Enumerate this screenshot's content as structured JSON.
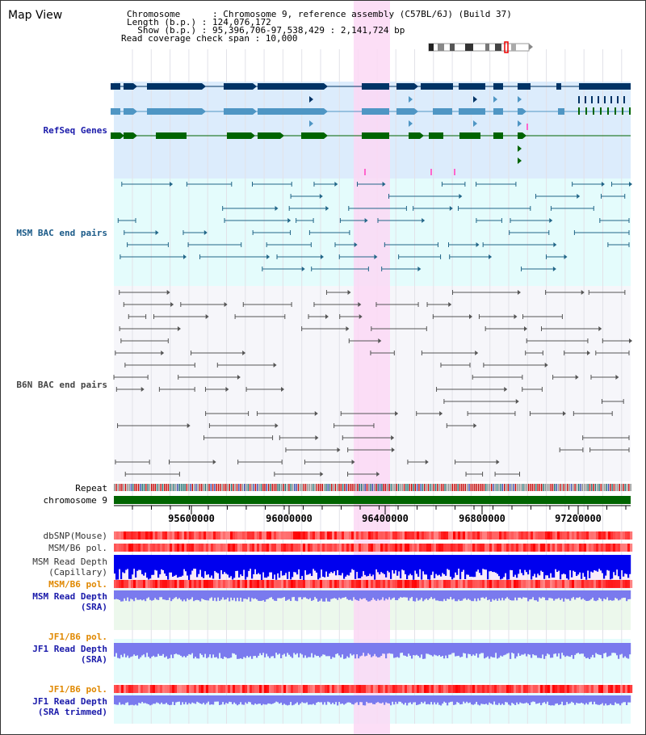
{
  "title": "Map View",
  "header": {
    "chromosome": "Chromosome      : Chromosome 9, reference assembly (C57BL/6J) (Build 37)",
    "length": "Length (b.p.) : 124,076,172",
    "show": "  Show (b.p.) : 95,396,706-97,538,429 : 2,141,724 bp",
    "coverage": "Read coverage check span : 10,000"
  },
  "tracks": {
    "refseq": "RefSeq Genes",
    "msm_bac": "MSM BAC end pairs",
    "b6n_bac": "B6N BAC end pairs",
    "repeat": "Repeat",
    "chromosome": "chromosome 9",
    "dbsnp": "dbSNP(Mouse)",
    "msm_b6_pol_1": "MSM/B6 pol.",
    "msm_depth_cap_1": "MSM Read Depth",
    "msm_depth_cap_2": "(Capillary)",
    "msm_b6_pol_2": "MSM/B6 pol.",
    "msm_depth_sra_1": "MSM Read Depth",
    "msm_depth_sra_2": "(SRA)",
    "jf1_b6_pol_1": "JF1/B6 pol.",
    "jf1_depth_sra_1": "JF1 Read Depth",
    "jf1_depth_sra_2": "(SRA)",
    "jf1_b6_pol_2": "JF1/B6 pol.",
    "jf1_depth_trim_1": "JF1 Read Depth",
    "jf1_depth_trim_2": "(SRA trimmed)"
  },
  "scale_ticks": [
    "95600000",
    "96000000",
    "96400000",
    "96800000",
    "97200000"
  ],
  "colors": {
    "refseq_bg": "#dcecfc",
    "msm_bg": "#e4fcfc",
    "highlight": "#fcd8f4",
    "gene_navy": "#003366",
    "gene_steel": "#4f96c4",
    "gene_green": "#006400",
    "bac_line": "#226688",
    "b6n_line": "#555555",
    "chromosome_bar": "#006400",
    "depth_capillary": "#0000ee",
    "depth_sra": "#7a7aee",
    "pol_red": "#ee3333",
    "label_blue": "#1a1aaa",
    "label_teal": "#1a5a88",
    "label_gray": "#444444",
    "label_orange": "#e08800"
  }
}
